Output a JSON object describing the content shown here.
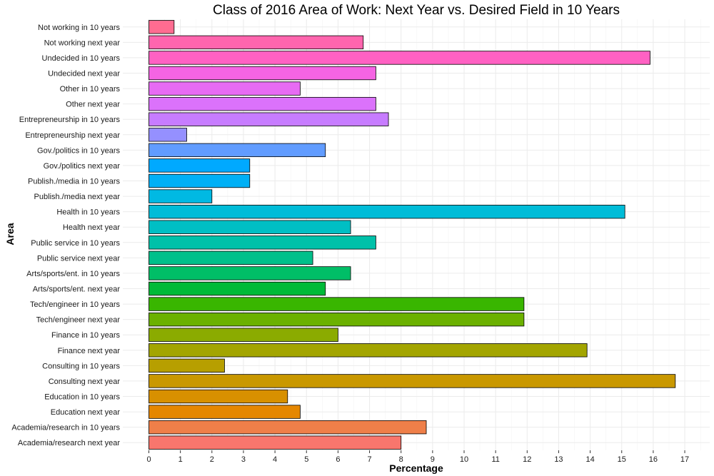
{
  "chart_data": {
    "type": "bar",
    "orientation": "horizontal",
    "title": "Class of 2016 Area of Work: Next Year vs. Desired Field in 10 Years",
    "xlabel": "Percentage",
    "ylabel": "Area",
    "xlim": [
      0,
      17
    ],
    "x_ticks": [
      "0",
      "1",
      "2",
      "3",
      "4",
      "5",
      "6",
      "7",
      "8",
      "9",
      "10",
      "11",
      "12",
      "13",
      "14",
      "15",
      "16",
      "17"
    ],
    "grid": true,
    "legend": "none",
    "categories": [
      "Academia/research next year",
      "Academia/research in 10 years",
      "Education next year",
      "Education in 10 years",
      "Consulting next year",
      "Consulting in 10 years",
      "Finance next year",
      "Finance in 10 years",
      "Tech/engineer next year",
      "Tech/engineer in 10 years",
      "Arts/sports/ent. next year",
      "Arts/sports/ent. in 10 years",
      "Public service next year",
      "Public service in 10 years",
      "Health next year",
      "Health in 10 years",
      "Publish./media next year",
      "Publish./media in 10 years",
      "Gov./politics next year",
      "Gov./politics in 10 years",
      "Entrepreneurship next year",
      "Entrepreneurship in 10 years",
      "Other next year",
      "Other in 10 years",
      "Undecided next year",
      "Undecided in 10 years",
      "Not working next year",
      "Not working in 10 years"
    ],
    "values": [
      8.0,
      8.8,
      4.8,
      4.4,
      16.7,
      2.4,
      13.9,
      6.0,
      11.9,
      11.9,
      5.6,
      6.4,
      5.2,
      7.2,
      6.4,
      15.1,
      2.0,
      3.2,
      3.2,
      5.6,
      1.2,
      7.6,
      7.2,
      4.8,
      7.2,
      15.9,
      6.8,
      0.8
    ],
    "colors": [
      "#F8766D",
      "#EF7F49",
      "#E58700",
      "#D89000",
      "#C99800",
      "#B79F00",
      "#A3A500",
      "#8BAB00",
      "#6BB100",
      "#39B600",
      "#00BA38",
      "#00BE67",
      "#00C08B",
      "#00C1A9",
      "#00BFC4",
      "#00BCD8",
      "#00B9E3",
      "#00B0F6",
      "#00A9FF",
      "#619CFF",
      "#9590FF",
      "#C77CFF",
      "#DB72FB",
      "#E76BF3",
      "#F564E3",
      "#FF61C3",
      "#FF65AE",
      "#FF6C91"
    ]
  }
}
